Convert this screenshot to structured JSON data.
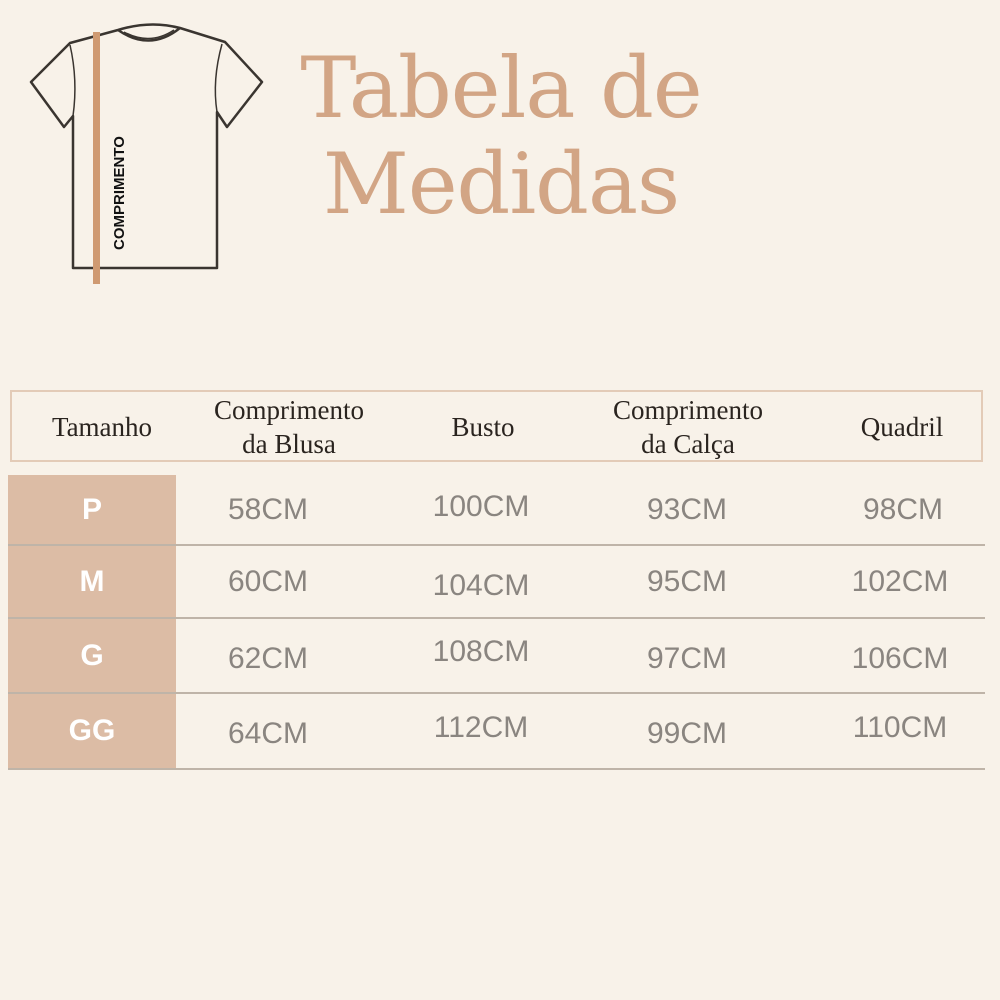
{
  "title": {
    "line1": "Tabela de",
    "line2": "Medidas"
  },
  "illustration": {
    "label": "COMPRIMENTO",
    "icon": "t-shirt-icon",
    "accent": "#cf9a72"
  },
  "colors": {
    "background": "#f8f2e9",
    "title": "#d2a585",
    "size_cell": "#dcbca5"
  },
  "table": {
    "headers": [
      "Tamanho",
      "Comprimento\nda Blusa",
      "Busto",
      "Comprimento\nda Calça",
      "Quadril"
    ],
    "rows": [
      {
        "size": "P",
        "values": [
          "58CM",
          "100CM",
          "93CM",
          "98CM"
        ]
      },
      {
        "size": "M",
        "values": [
          "60CM",
          "104CM",
          "95CM",
          "102CM"
        ]
      },
      {
        "size": "G",
        "values": [
          "62CM",
          "108CM",
          "97CM",
          "106CM"
        ]
      },
      {
        "size": "GG",
        "values": [
          "64CM",
          "112CM",
          "99CM",
          "110CM"
        ]
      }
    ]
  }
}
